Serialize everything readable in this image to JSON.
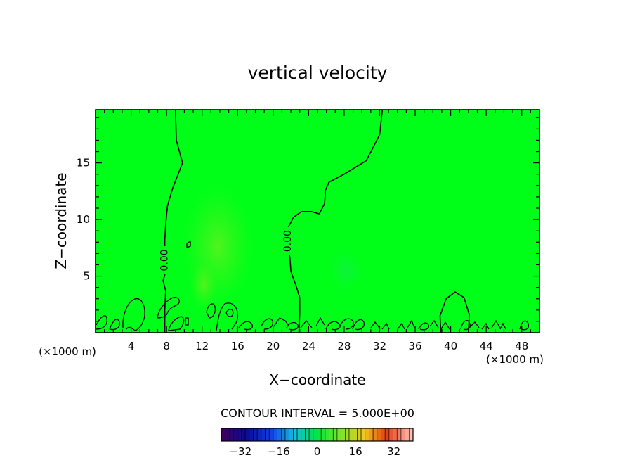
{
  "chart_data": {
    "type": "heatmap",
    "title": "vertical velocity",
    "xlabel": "X−coordinate",
    "ylabel": "Z−coordinate",
    "x_unit": "(×1000 m)",
    "y_unit": "(×1000 m)",
    "xlim": [
      0,
      50
    ],
    "ylim": [
      0,
      19.7
    ],
    "x_ticks": [
      4,
      8,
      12,
      16,
      20,
      24,
      28,
      32,
      36,
      40,
      44,
      48
    ],
    "y_ticks": [
      5,
      10,
      15
    ],
    "x_tick_labels": [
      "4",
      "8",
      "12",
      "16",
      "20",
      "24",
      "28",
      "32",
      "36",
      "40",
      "44",
      "48"
    ],
    "y_tick_labels": [
      "5",
      "10",
      "15"
    ],
    "field_background_value": 0,
    "field_background_color": "#00ff18",
    "contour_label_text": "0.00",
    "contour_labels": [
      {
        "text": "0.00",
        "x": 7.7,
        "y": 6.4
      },
      {
        "text": "0.00",
        "x": 21.6,
        "y": 8.1
      }
    ],
    "zero_contour_a": [
      [
        9.0,
        19.7
      ],
      [
        9.1,
        17.0
      ],
      [
        9.8,
        15.0
      ],
      [
        8.7,
        12.8
      ],
      [
        8.1,
        11.2
      ],
      [
        7.9,
        9.6
      ],
      [
        7.8,
        8.2
      ],
      [
        7.8,
        7.2
      ],
      [
        7.8,
        5.1
      ],
      [
        7.6,
        4.6
      ],
      [
        7.9,
        3.7
      ],
      [
        7.8,
        2.0
      ],
      [
        7.8,
        0.0
      ]
    ],
    "zero_contour_b": [
      [
        32.3,
        19.7
      ],
      [
        32.0,
        17.5
      ],
      [
        30.5,
        15.2
      ],
      [
        28.0,
        14.0
      ],
      [
        26.3,
        13.3
      ],
      [
        25.9,
        12.6
      ],
      [
        25.8,
        11.4
      ],
      [
        25.2,
        10.5
      ],
      [
        24.3,
        10.7
      ],
      [
        23.2,
        10.7
      ],
      [
        22.3,
        10.2
      ],
      [
        21.7,
        9.3
      ],
      [
        21.6,
        7.8
      ],
      [
        21.9,
        6.6
      ],
      [
        22.0,
        5.4
      ],
      [
        22.6,
        4.1
      ],
      [
        23.0,
        3.1
      ],
      [
        23.0,
        1.7
      ],
      [
        22.9,
        0.0
      ]
    ],
    "dome_contour": [
      [
        38.9,
        0.0
      ],
      [
        38.8,
        1.5
      ],
      [
        39.5,
        3.0
      ],
      [
        40.5,
        3.6
      ],
      [
        41.5,
        3.1
      ],
      [
        42.1,
        1.6
      ],
      [
        42.0,
        0.0
      ]
    ],
    "colorbar": {
      "title": "CONTOUR INTERVAL = 5.000E+00",
      "min": -40,
      "max": 40,
      "step": 5,
      "tick_values": [
        -32,
        -16,
        0,
        16,
        32
      ],
      "tick_labels": [
        "−32",
        "−16",
        "0",
        "16",
        "32"
      ]
    }
  }
}
